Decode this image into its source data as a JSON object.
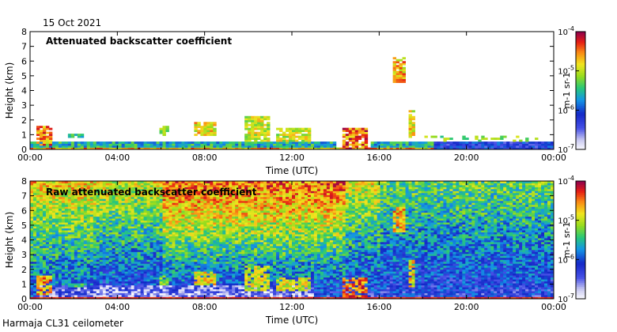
{
  "header": {
    "date": "15 Oct 2021"
  },
  "footer": {
    "instrument": "Harmaja CL31 ceilometer"
  },
  "colors": {
    "frame": "#000000",
    "background": "#ffffff"
  },
  "chart_data": [
    {
      "type": "heatmap",
      "title": "Attenuated backscatter coefficient",
      "xlabel": "Time (UTC)",
      "ylabel": "Height (km)",
      "xlim": [
        0,
        24
      ],
      "ylim": [
        0,
        8
      ],
      "x_ticks": [
        0,
        4,
        8,
        12,
        16,
        20,
        24
      ],
      "x_tick_labels": [
        "00:00",
        "04:00",
        "08:00",
        "12:00",
        "16:00",
        "20:00",
        "00:00"
      ],
      "y_ticks": [
        0,
        1,
        2,
        3,
        4,
        5,
        6,
        7,
        8
      ],
      "y_tick_labels": [
        "0",
        "1",
        "2",
        "3",
        "4",
        "5",
        "6",
        "7",
        "8"
      ],
      "colorbar": {
        "label": "m-1 sr-1",
        "scale": "log",
        "range": [
          1e-07,
          0.0001
        ],
        "ticks": [
          {
            "base": "10",
            "exp": "-4"
          },
          {
            "base": "10",
            "exp": "-5"
          },
          {
            "base": "10",
            "exp": "-6"
          },
          {
            "base": "10",
            "exp": "-7"
          }
        ]
      },
      "features": {
        "boundary_layer_top_km": 0.35,
        "cloud_patches": [
          {
            "start_h": 0.3,
            "end_h": 1.0,
            "base_km": 0.3,
            "top_km": 1.6,
            "intensity": 0.95
          },
          {
            "start_h": 1.8,
            "end_h": 2.4,
            "base_km": 0.8,
            "top_km": 1.1,
            "intensity": 0.6
          },
          {
            "start_h": 6.0,
            "end_h": 6.4,
            "base_km": 1.0,
            "top_km": 1.6,
            "intensity": 0.7
          },
          {
            "start_h": 7.5,
            "end_h": 8.6,
            "base_km": 1.0,
            "top_km": 1.9,
            "intensity": 0.85
          },
          {
            "start_h": 9.8,
            "end_h": 11.0,
            "base_km": 0.6,
            "top_km": 2.2,
            "intensity": 0.8
          },
          {
            "start_h": 11.3,
            "end_h": 12.8,
            "base_km": 0.5,
            "top_km": 1.5,
            "intensity": 0.8
          },
          {
            "start_h": 14.3,
            "end_h": 15.5,
            "base_km": 0.0,
            "top_km": 1.5,
            "intensity": 1.0
          },
          {
            "start_h": 16.6,
            "end_h": 17.2,
            "base_km": 4.6,
            "top_km": 6.2,
            "intensity": 0.9
          },
          {
            "start_h": 17.3,
            "end_h": 17.7,
            "base_km": 0.8,
            "top_km": 2.6,
            "intensity": 0.85
          }
        ]
      }
    },
    {
      "type": "heatmap",
      "title": "Raw attenuated backscatter coefficient",
      "xlabel": "Time (UTC)",
      "ylabel": "Height (km)",
      "xlim": [
        0,
        24
      ],
      "ylim": [
        0,
        8
      ],
      "x_ticks": [
        0,
        4,
        8,
        12,
        16,
        20,
        24
      ],
      "x_tick_labels": [
        "00:00",
        "04:00",
        "08:00",
        "12:00",
        "16:00",
        "20:00",
        "00:00"
      ],
      "y_ticks": [
        0,
        1,
        2,
        3,
        4,
        5,
        6,
        7,
        8
      ],
      "y_tick_labels": [
        "0",
        "1",
        "2",
        "3",
        "4",
        "5",
        "6",
        "7",
        "8"
      ],
      "colorbar": {
        "label": "m-1 sr-1",
        "scale": "log",
        "range": [
          1e-07,
          0.0001
        ],
        "ticks": [
          {
            "base": "10",
            "exp": "-4"
          },
          {
            "base": "10",
            "exp": "-5"
          },
          {
            "base": "10",
            "exp": "-6"
          },
          {
            "base": "10",
            "exp": "-7"
          }
        ]
      },
      "features": {
        "noise_pattern": "uniform background noise, strongest (red) at 7-8 km around 08:00-14:00, low-level clouds as in top panel"
      }
    }
  ]
}
